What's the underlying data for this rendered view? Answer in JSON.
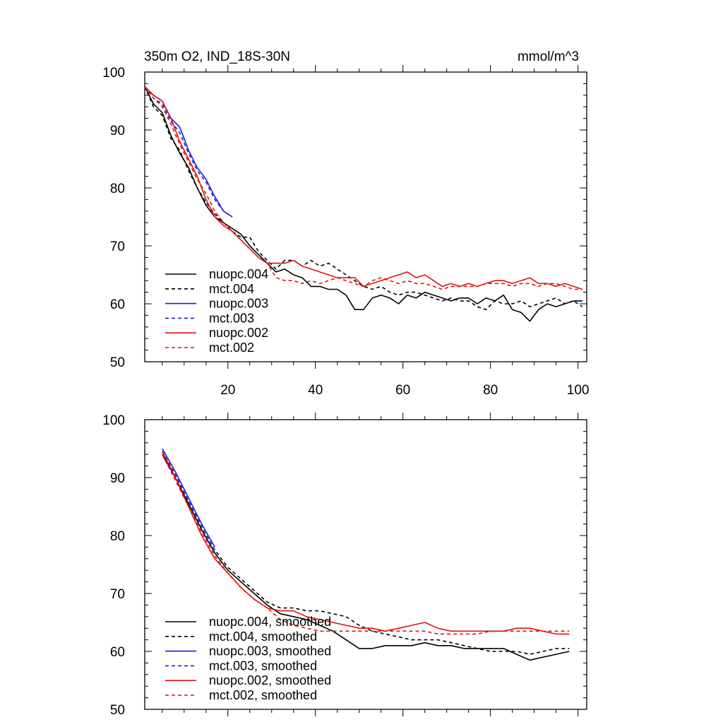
{
  "chart_data": [
    {
      "type": "line",
      "title_left": "350m O2, IND_18S-30N",
      "title_right": "mmol/m^3",
      "xlabel": "",
      "ylabel": "",
      "xlim": [
        1,
        102
      ],
      "ylim": [
        50,
        100
      ],
      "xticks": [
        20,
        40,
        60,
        80,
        100
      ],
      "xtick_labels": [
        "20",
        "40",
        "60",
        "80",
        "100"
      ],
      "yticks": [
        50,
        60,
        70,
        80,
        90,
        100
      ],
      "ytick_labels": [
        "50",
        "60",
        "70",
        "80",
        "90",
        "100"
      ],
      "grid": false,
      "legend_position": "bottom-left",
      "series": [
        {
          "name": "nuopc.004",
          "color": "#000000",
          "dash": "solid",
          "x": [
            1,
            3,
            5,
            7,
            9,
            11,
            13,
            15,
            17,
            19,
            21,
            23,
            25,
            27,
            29,
            31,
            33,
            35,
            37,
            39,
            41,
            43,
            45,
            47,
            49,
            51,
            53,
            55,
            57,
            59,
            61,
            63,
            65,
            67,
            69,
            71,
            73,
            75,
            77,
            79,
            81,
            83,
            85,
            87,
            89,
            91,
            93,
            95,
            97,
            99,
            101
          ],
          "y": [
            97.5,
            94.5,
            93,
            89,
            86,
            83.5,
            80,
            77,
            75,
            74,
            73,
            72,
            70,
            68.5,
            67,
            65.5,
            66,
            65,
            64.5,
            63,
            63,
            62.5,
            62.5,
            61.5,
            59,
            59,
            61,
            61.5,
            61,
            60,
            61.5,
            61,
            62,
            61.5,
            61,
            60.5,
            61,
            61,
            60,
            61,
            60.5,
            61.5,
            59,
            58.5,
            57,
            59,
            60,
            59.5,
            60,
            60.5,
            60.5
          ]
        },
        {
          "name": "mct.004",
          "color": "#000000",
          "dash": "dashed",
          "x": [
            1,
            3,
            5,
            7,
            9,
            11,
            13,
            15,
            17,
            19,
            21,
            23,
            25,
            27,
            29,
            31,
            33,
            35,
            37,
            39,
            41,
            43,
            45,
            47,
            49,
            51,
            53,
            55,
            57,
            59,
            61,
            63,
            65,
            67,
            69,
            71,
            73,
            75,
            77,
            79,
            81,
            83,
            85,
            87,
            89,
            91,
            93,
            95,
            97,
            99,
            101
          ],
          "y": [
            97.5,
            94,
            92.5,
            88.5,
            86.5,
            83,
            80,
            77.5,
            75.5,
            74,
            72.5,
            71.5,
            71.5,
            69,
            67.5,
            66,
            67.5,
            67.5,
            66.5,
            67.5,
            66.5,
            67,
            66,
            65,
            64,
            63,
            62.5,
            63,
            62,
            61.5,
            62,
            62,
            61.5,
            61,
            60.5,
            61,
            60.5,
            60.5,
            59.5,
            59,
            60.5,
            60,
            60,
            60.5,
            59.5,
            60,
            60.5,
            61,
            60,
            60.5,
            59.5
          ]
        },
        {
          "name": "nuopc.003",
          "color": "#1a1ad6",
          "dash": "solid",
          "x": [
            1,
            3,
            5,
            7,
            9,
            11,
            13,
            15,
            17,
            19,
            21
          ],
          "y": [
            97.5,
            96,
            95,
            92,
            90.5,
            86.5,
            83.5,
            81.5,
            78.5,
            76,
            75
          ]
        },
        {
          "name": "mct.003",
          "color": "#1a1ad6",
          "dash": "dashed",
          "x": [
            1,
            3,
            5,
            7,
            9,
            11,
            13,
            15,
            17,
            19,
            21
          ],
          "y": [
            97.5,
            95.5,
            94.5,
            91.5,
            89.5,
            86,
            83,
            81,
            78,
            76,
            75
          ]
        },
        {
          "name": "nuopc.002",
          "color": "#e01010",
          "dash": "solid",
          "x": [
            1,
            3,
            5,
            7,
            9,
            11,
            13,
            15,
            17,
            19,
            21,
            23,
            25,
            27,
            29,
            31,
            33,
            35,
            37,
            39,
            41,
            43,
            45,
            47,
            49,
            51,
            53,
            55,
            57,
            59,
            61,
            63,
            65,
            67,
            69,
            71,
            73,
            75,
            77,
            79,
            81,
            83,
            85,
            87,
            89,
            91,
            93,
            95,
            97,
            99,
            101
          ],
          "y": [
            97.5,
            96,
            95,
            92,
            88,
            85,
            82,
            78,
            75,
            73.5,
            72.5,
            71,
            69.5,
            68,
            67,
            67,
            67,
            67.5,
            66.5,
            66,
            65.5,
            65,
            64.5,
            64.5,
            64.5,
            63,
            63.5,
            64,
            64.5,
            65,
            65.5,
            64.5,
            65,
            64,
            63,
            63.5,
            63,
            63.5,
            63,
            63.5,
            64,
            64,
            63.5,
            64,
            64.5,
            63.5,
            63.5,
            63,
            63.5,
            63,
            62.5
          ]
        },
        {
          "name": "mct.002",
          "color": "#e01010",
          "dash": "dashed",
          "x": [
            1,
            3,
            5,
            7,
            9,
            11,
            13,
            15,
            17,
            19,
            21,
            23,
            25,
            27,
            29,
            31,
            33,
            35,
            37,
            39,
            41,
            43,
            45,
            47,
            49,
            51,
            53,
            55,
            57,
            59,
            61,
            63,
            65,
            67,
            69,
            71,
            73,
            75,
            77,
            79,
            81,
            83,
            85,
            87,
            89,
            91,
            93,
            95,
            97,
            99,
            101
          ],
          "y": [
            97.5,
            95.5,
            94,
            91,
            87.5,
            84.5,
            81.5,
            79,
            76,
            74,
            72.5,
            71,
            69.5,
            68,
            67,
            64.5,
            64,
            64,
            63.5,
            64,
            63.5,
            64,
            64.5,
            64,
            63.5,
            63,
            64,
            64.5,
            64,
            63.5,
            64,
            63.5,
            63.5,
            63,
            62.5,
            63,
            63,
            63,
            63,
            63.5,
            63.5,
            63.5,
            63,
            63.5,
            63.5,
            63,
            63.5,
            63.5,
            63,
            62.5,
            62.5
          ]
        }
      ]
    },
    {
      "type": "line",
      "xlabel": "",
      "ylabel": "",
      "xlim": [
        1,
        102
      ],
      "ylim": [
        50,
        100
      ],
      "xticks": [
        20,
        40,
        60,
        80,
        100
      ],
      "yticks": [
        50,
        60,
        70,
        80,
        90,
        100
      ],
      "ytick_labels": [
        "50",
        "60",
        "70",
        "80",
        "90",
        "100"
      ],
      "grid": false,
      "legend_position": "bottom-left",
      "series": [
        {
          "name": "nuopc.004, smoothed",
          "color": "#000000",
          "dash": "solid",
          "x": [
            5,
            8,
            11,
            14,
            17,
            20,
            23,
            26,
            29,
            32,
            35,
            38,
            41,
            44,
            47,
            50,
            53,
            56,
            59,
            62,
            65,
            68,
            71,
            74,
            77,
            80,
            83,
            86,
            89,
            92,
            95,
            98
          ],
          "y": [
            94,
            90,
            85.5,
            81,
            77,
            74,
            72,
            70,
            68,
            66.5,
            66,
            65.5,
            64.5,
            63.5,
            62,
            60.5,
            60.5,
            61,
            61,
            61,
            61.5,
            61,
            61,
            60.5,
            60.5,
            60.5,
            60.5,
            59.5,
            58.5,
            59,
            59.5,
            60
          ]
        },
        {
          "name": "mct.004, smoothed",
          "color": "#000000",
          "dash": "dashed",
          "x": [
            5,
            8,
            11,
            14,
            17,
            20,
            23,
            26,
            29,
            32,
            35,
            38,
            41,
            44,
            47,
            50,
            53,
            56,
            59,
            62,
            65,
            68,
            71,
            74,
            77,
            80,
            83,
            86,
            89,
            92,
            95,
            98
          ],
          "y": [
            94.5,
            90.5,
            86,
            81.5,
            77.5,
            74.5,
            72.5,
            70.5,
            68.5,
            67.5,
            67.5,
            67,
            67,
            66.5,
            66,
            64.5,
            63.5,
            63,
            62.5,
            62,
            62,
            62,
            61.5,
            61,
            60.5,
            60,
            60,
            60,
            59.5,
            60,
            60.5,
            60.5
          ]
        },
        {
          "name": "nuopc.003, smoothed",
          "color": "#1a1ad6",
          "dash": "solid",
          "x": [
            5,
            8,
            11,
            14,
            17
          ],
          "y": [
            95,
            91,
            86.5,
            82,
            78
          ]
        },
        {
          "name": "mct.003, smoothed",
          "color": "#1a1ad6",
          "dash": "dashed",
          "x": [
            5,
            8,
            11,
            14,
            17
          ],
          "y": [
            94.5,
            90.5,
            86,
            81.5,
            77.5
          ]
        },
        {
          "name": "nuopc.002, smoothed",
          "color": "#e01010",
          "dash": "solid",
          "x": [
            5,
            8,
            11,
            14,
            17,
            20,
            23,
            26,
            29,
            32,
            35,
            38,
            41,
            44,
            47,
            50,
            53,
            56,
            59,
            62,
            65,
            68,
            71,
            74,
            77,
            80,
            83,
            86,
            89,
            92,
            95,
            98
          ],
          "y": [
            94.5,
            90,
            85,
            80,
            76,
            73.5,
            71,
            69,
            67.5,
            67,
            67,
            66,
            65.5,
            65,
            64.5,
            64,
            64,
            63.5,
            64,
            64.5,
            65,
            64,
            63.5,
            63.5,
            63.5,
            63.5,
            63.5,
            64,
            64,
            63.5,
            63,
            63
          ]
        },
        {
          "name": "mct.002, smoothed",
          "color": "#e01010",
          "dash": "dashed",
          "x": [
            5,
            8,
            11,
            14,
            17,
            20,
            23,
            26,
            29,
            32,
            35,
            38,
            41,
            44,
            47,
            50,
            53,
            56,
            59,
            62,
            65,
            68,
            71,
            74,
            77,
            80,
            83,
            86,
            89,
            92,
            95,
            98
          ],
          "y": [
            94,
            89.5,
            85,
            80.5,
            76.5,
            73.5,
            71,
            69,
            67.5,
            65.5,
            64.5,
            64,
            63.5,
            63.5,
            63.5,
            63.5,
            63.5,
            63.5,
            63.5,
            63.5,
            63.5,
            63,
            63,
            63,
            63,
            63.5,
            63.5,
            63.5,
            63.5,
            63.5,
            63.5,
            63.5
          ]
        }
      ]
    }
  ]
}
